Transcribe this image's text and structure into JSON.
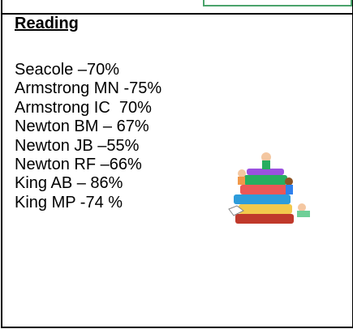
{
  "title": "Reading",
  "items": [
    "Seacole –70%",
    "Armstrong MN -75%",
    "Armstrong IC  70%",
    "Newton BM – 67%",
    "Newton JB –55%",
    "Newton RF –66%",
    "King AB – 86%",
    "King MP -74 %"
  ]
}
